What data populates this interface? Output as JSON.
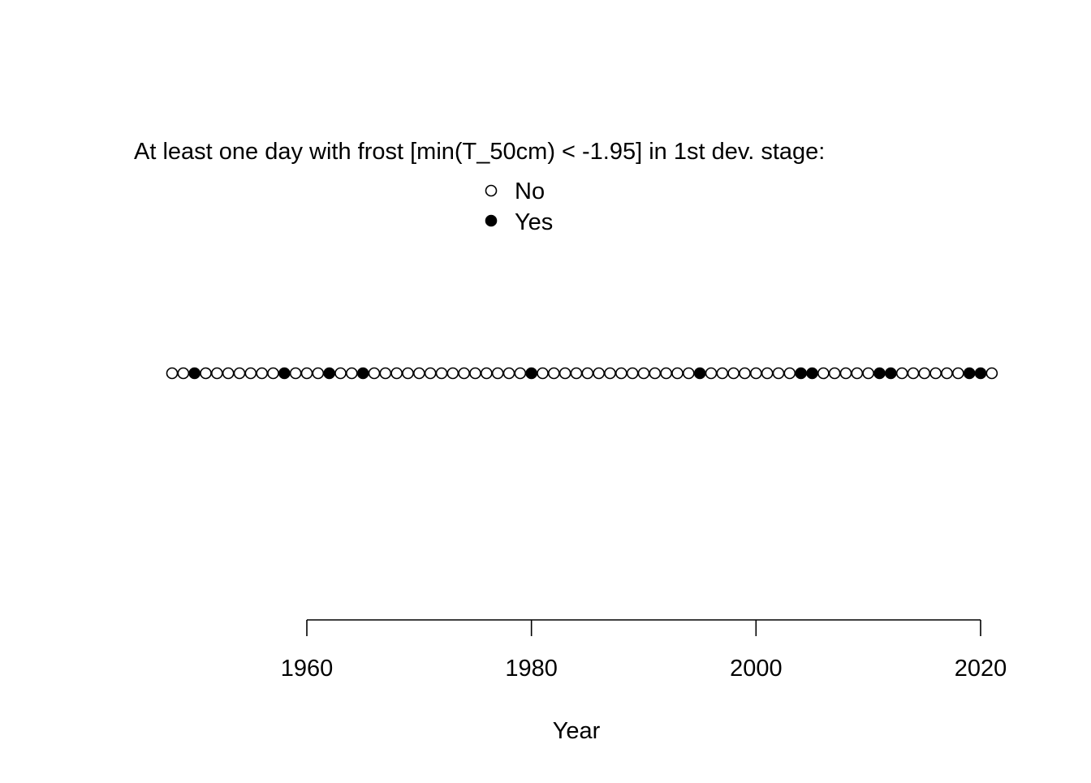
{
  "chart_data": {
    "type": "scatter",
    "legend_title": "At least one day with frost [min(T_50cm) < -1.95] in 1st dev. stage:",
    "legend_placement": "top-center",
    "legend_entries": [
      {
        "label": "No",
        "marker": "open-circle"
      },
      {
        "label": "Yes",
        "marker": "filled-circle"
      }
    ],
    "xlabel": "Year",
    "ylabel": "",
    "xlim": [
      1947,
      2022
    ],
    "x_ticks": [
      1960,
      1980,
      2000,
      2020
    ],
    "x_tick_labels": [
      "1960",
      "1980",
      "2000",
      "2020"
    ],
    "grid": false,
    "y_axis_shown": false,
    "series": [
      {
        "name": "No",
        "marker": "open-circle",
        "x": [
          1948,
          1949,
          1951,
          1952,
          1953,
          1954,
          1955,
          1956,
          1957,
          1959,
          1960,
          1961,
          1963,
          1964,
          1966,
          1967,
          1968,
          1969,
          1970,
          1971,
          1972,
          1973,
          1974,
          1975,
          1976,
          1977,
          1978,
          1979,
          1981,
          1982,
          1983,
          1984,
          1985,
          1986,
          1987,
          1988,
          1989,
          1990,
          1991,
          1992,
          1993,
          1994,
          1996,
          1997,
          1998,
          1999,
          2000,
          2001,
          2002,
          2003,
          2006,
          2007,
          2008,
          2009,
          2010,
          2013,
          2014,
          2015,
          2016,
          2017,
          2018,
          2021
        ]
      },
      {
        "name": "Yes",
        "marker": "filled-circle",
        "x": [
          1950,
          1958,
          1962,
          1965,
          1980,
          1995,
          2004,
          2005,
          2011,
          2012,
          2019,
          2020
        ]
      }
    ]
  }
}
